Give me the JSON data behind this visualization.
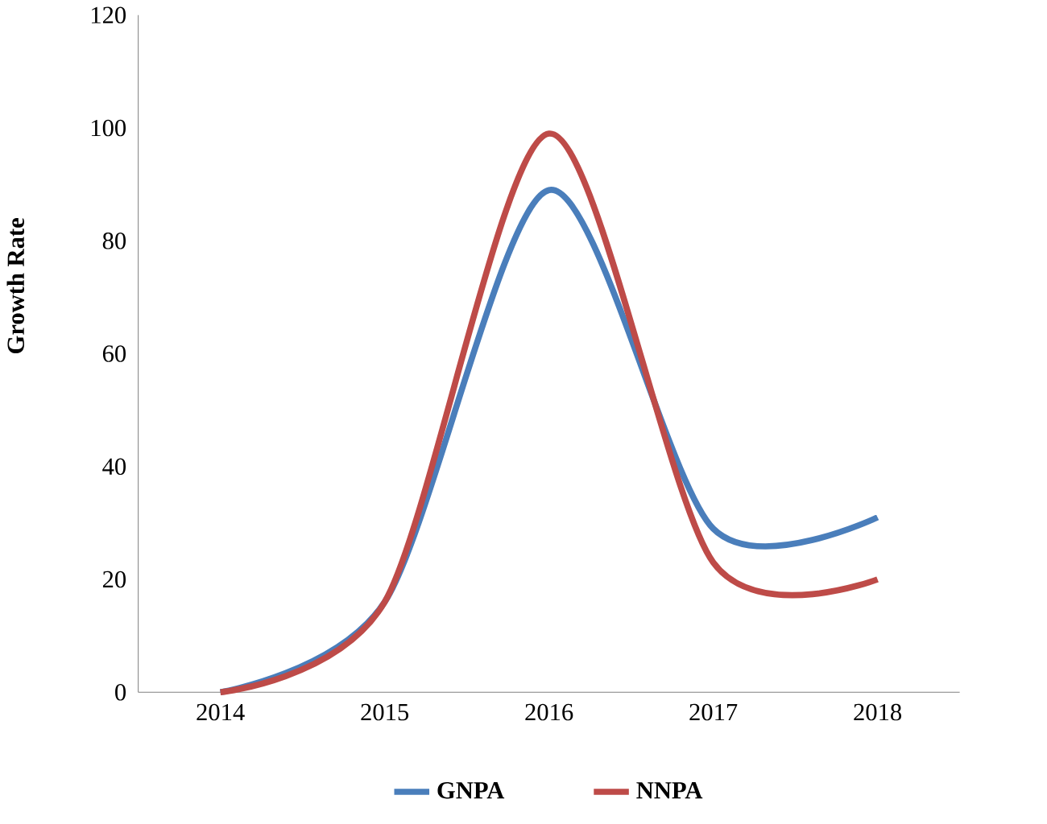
{
  "chart_data": {
    "type": "line",
    "ylabel": "Growth Rate",
    "categories": [
      "2014",
      "2015",
      "2016",
      "2017",
      "2018"
    ],
    "series": [
      {
        "name": "GNPA",
        "color": "#4a7ebb",
        "values": [
          0,
          16,
          89,
          29,
          31
        ]
      },
      {
        "name": "NNPA",
        "color": "#be4b48",
        "values": [
          0,
          16,
          99,
          23,
          20
        ]
      }
    ],
    "ylim": [
      0,
      120
    ],
    "yticks": [
      0,
      20,
      40,
      60,
      80,
      100,
      120
    ],
    "grid": false,
    "legend": "bottom",
    "marker": "none",
    "line_style": "solid"
  }
}
